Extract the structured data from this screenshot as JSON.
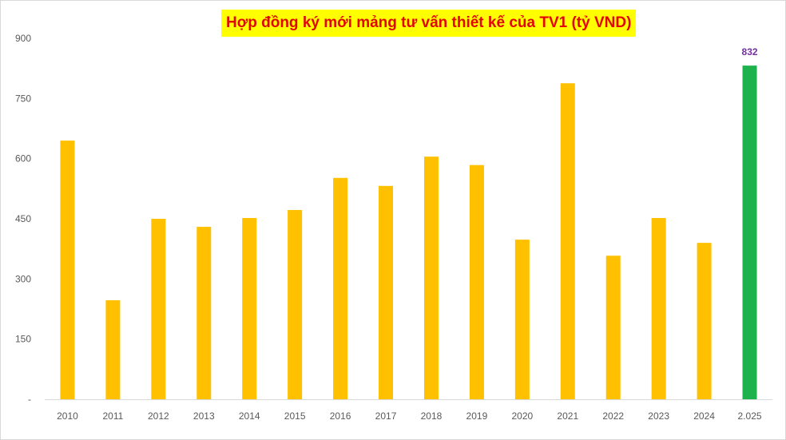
{
  "chart_data": {
    "type": "bar",
    "title": "Hợp đồng ký mới mảng tư vấn thiết kế của TV1 (tỷ VND)",
    "categories": [
      "2010",
      "2011",
      "2012",
      "2013",
      "2014",
      "2015",
      "2016",
      "2017",
      "2018",
      "2019",
      "2020",
      "2021",
      "2022",
      "2023",
      "2024",
      "2.025"
    ],
    "values": [
      645,
      247,
      450,
      430,
      452,
      472,
      552,
      532,
      605,
      584,
      398,
      788,
      358,
      452,
      390,
      832
    ],
    "ylim": [
      0,
      900
    ],
    "yticks": [
      0,
      150,
      300,
      450,
      600,
      750,
      900
    ],
    "ytick_labels": [
      "-",
      "150",
      "300",
      "450",
      "600",
      "750",
      "900"
    ],
    "data_labels": [
      {
        "category": "2.025",
        "text": "832"
      }
    ],
    "grid": false,
    "legend": "none",
    "colors": {
      "bar": "#ffc000",
      "highlight_bar": "#1db24b",
      "highlight_label": "#7030a0",
      "title_text": "#e10600",
      "title_background": "#ffff00",
      "axis_text": "#595959",
      "axis_line": "#d9d9d9"
    },
    "highlight_index": 15
  }
}
